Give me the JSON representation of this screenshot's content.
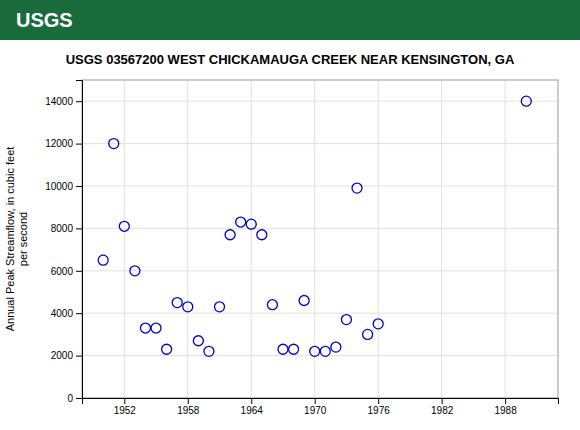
{
  "chart_data": {
    "type": "scatter",
    "title": "USGS 03567200 WEST CHICKAMAUGA CREEK NEAR KENSINGTON, GA",
    "annotations": [
      "USGS"
    ],
    "y_label": "Annual Peak Streamflow, in cubic feet\nper second",
    "x": [
      1950,
      1951,
      1952,
      1953,
      1954,
      1955,
      1956,
      1957,
      1958,
      1959,
      1960,
      1961,
      1962,
      1963,
      1964,
      1965,
      1966,
      1967,
      1968,
      1969,
      1970,
      1971,
      1972,
      1973,
      1974,
      1975,
      1976,
      1990
    ],
    "values": [
      6500,
      12000,
      8100,
      6000,
      3300,
      3300,
      2300,
      4500,
      4300,
      2700,
      2200,
      4300,
      7700,
      8300,
      8200,
      7700,
      4400,
      2300,
      2300,
      4600,
      2200,
      2200,
      2400,
      3700,
      9900,
      3000,
      3500,
      14000
    ],
    "color": "#0000cc",
    "marker": "open-circle",
    "xlim": [
      1948,
      1993
    ],
    "ylim": [
      0,
      15000
    ],
    "xticks": [
      1952,
      1958,
      1964,
      1970,
      1976,
      1982,
      1988
    ],
    "yticks": [
      0,
      2000,
      4000,
      6000,
      8000,
      10000,
      12000,
      14000
    ],
    "grid": true
  }
}
